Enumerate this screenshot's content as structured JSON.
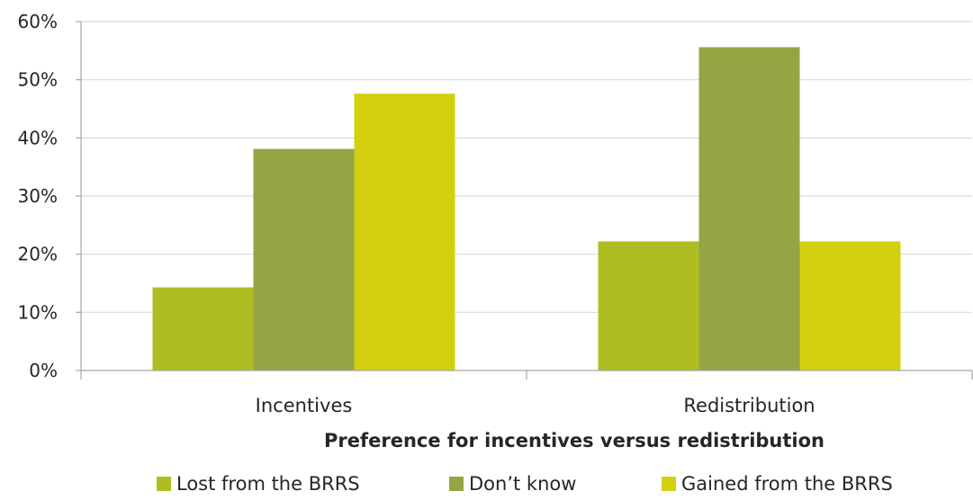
{
  "chart_data": {
    "type": "bar",
    "categories": [
      "Incentives",
      "Redistribution"
    ],
    "series": [
      {
        "name": "Lost from the BRRS",
        "values": [
          14.3,
          22.2
        ],
        "color": "#b0bd22"
      },
      {
        "name": "Don’t know",
        "values": [
          38.1,
          55.6
        ],
        "color": "#94a543"
      },
      {
        "name": "Gained from the BRRS",
        "values": [
          47.6,
          22.2
        ],
        "color": "#d4d00f"
      }
    ],
    "xlabel": "Preference for incentives versus redistribution",
    "ylabel": "",
    "ylim": [
      0,
      60
    ],
    "yticks": [
      0,
      10,
      20,
      30,
      40,
      50,
      60
    ],
    "ytick_labels": [
      "0%",
      "10%",
      "20%",
      "30%",
      "40%",
      "50%",
      "60%"
    ],
    "grid": true,
    "legend": "bottom",
    "gridline_color": "#d9d9d9",
    "axis_color": "#a6a6a6"
  }
}
